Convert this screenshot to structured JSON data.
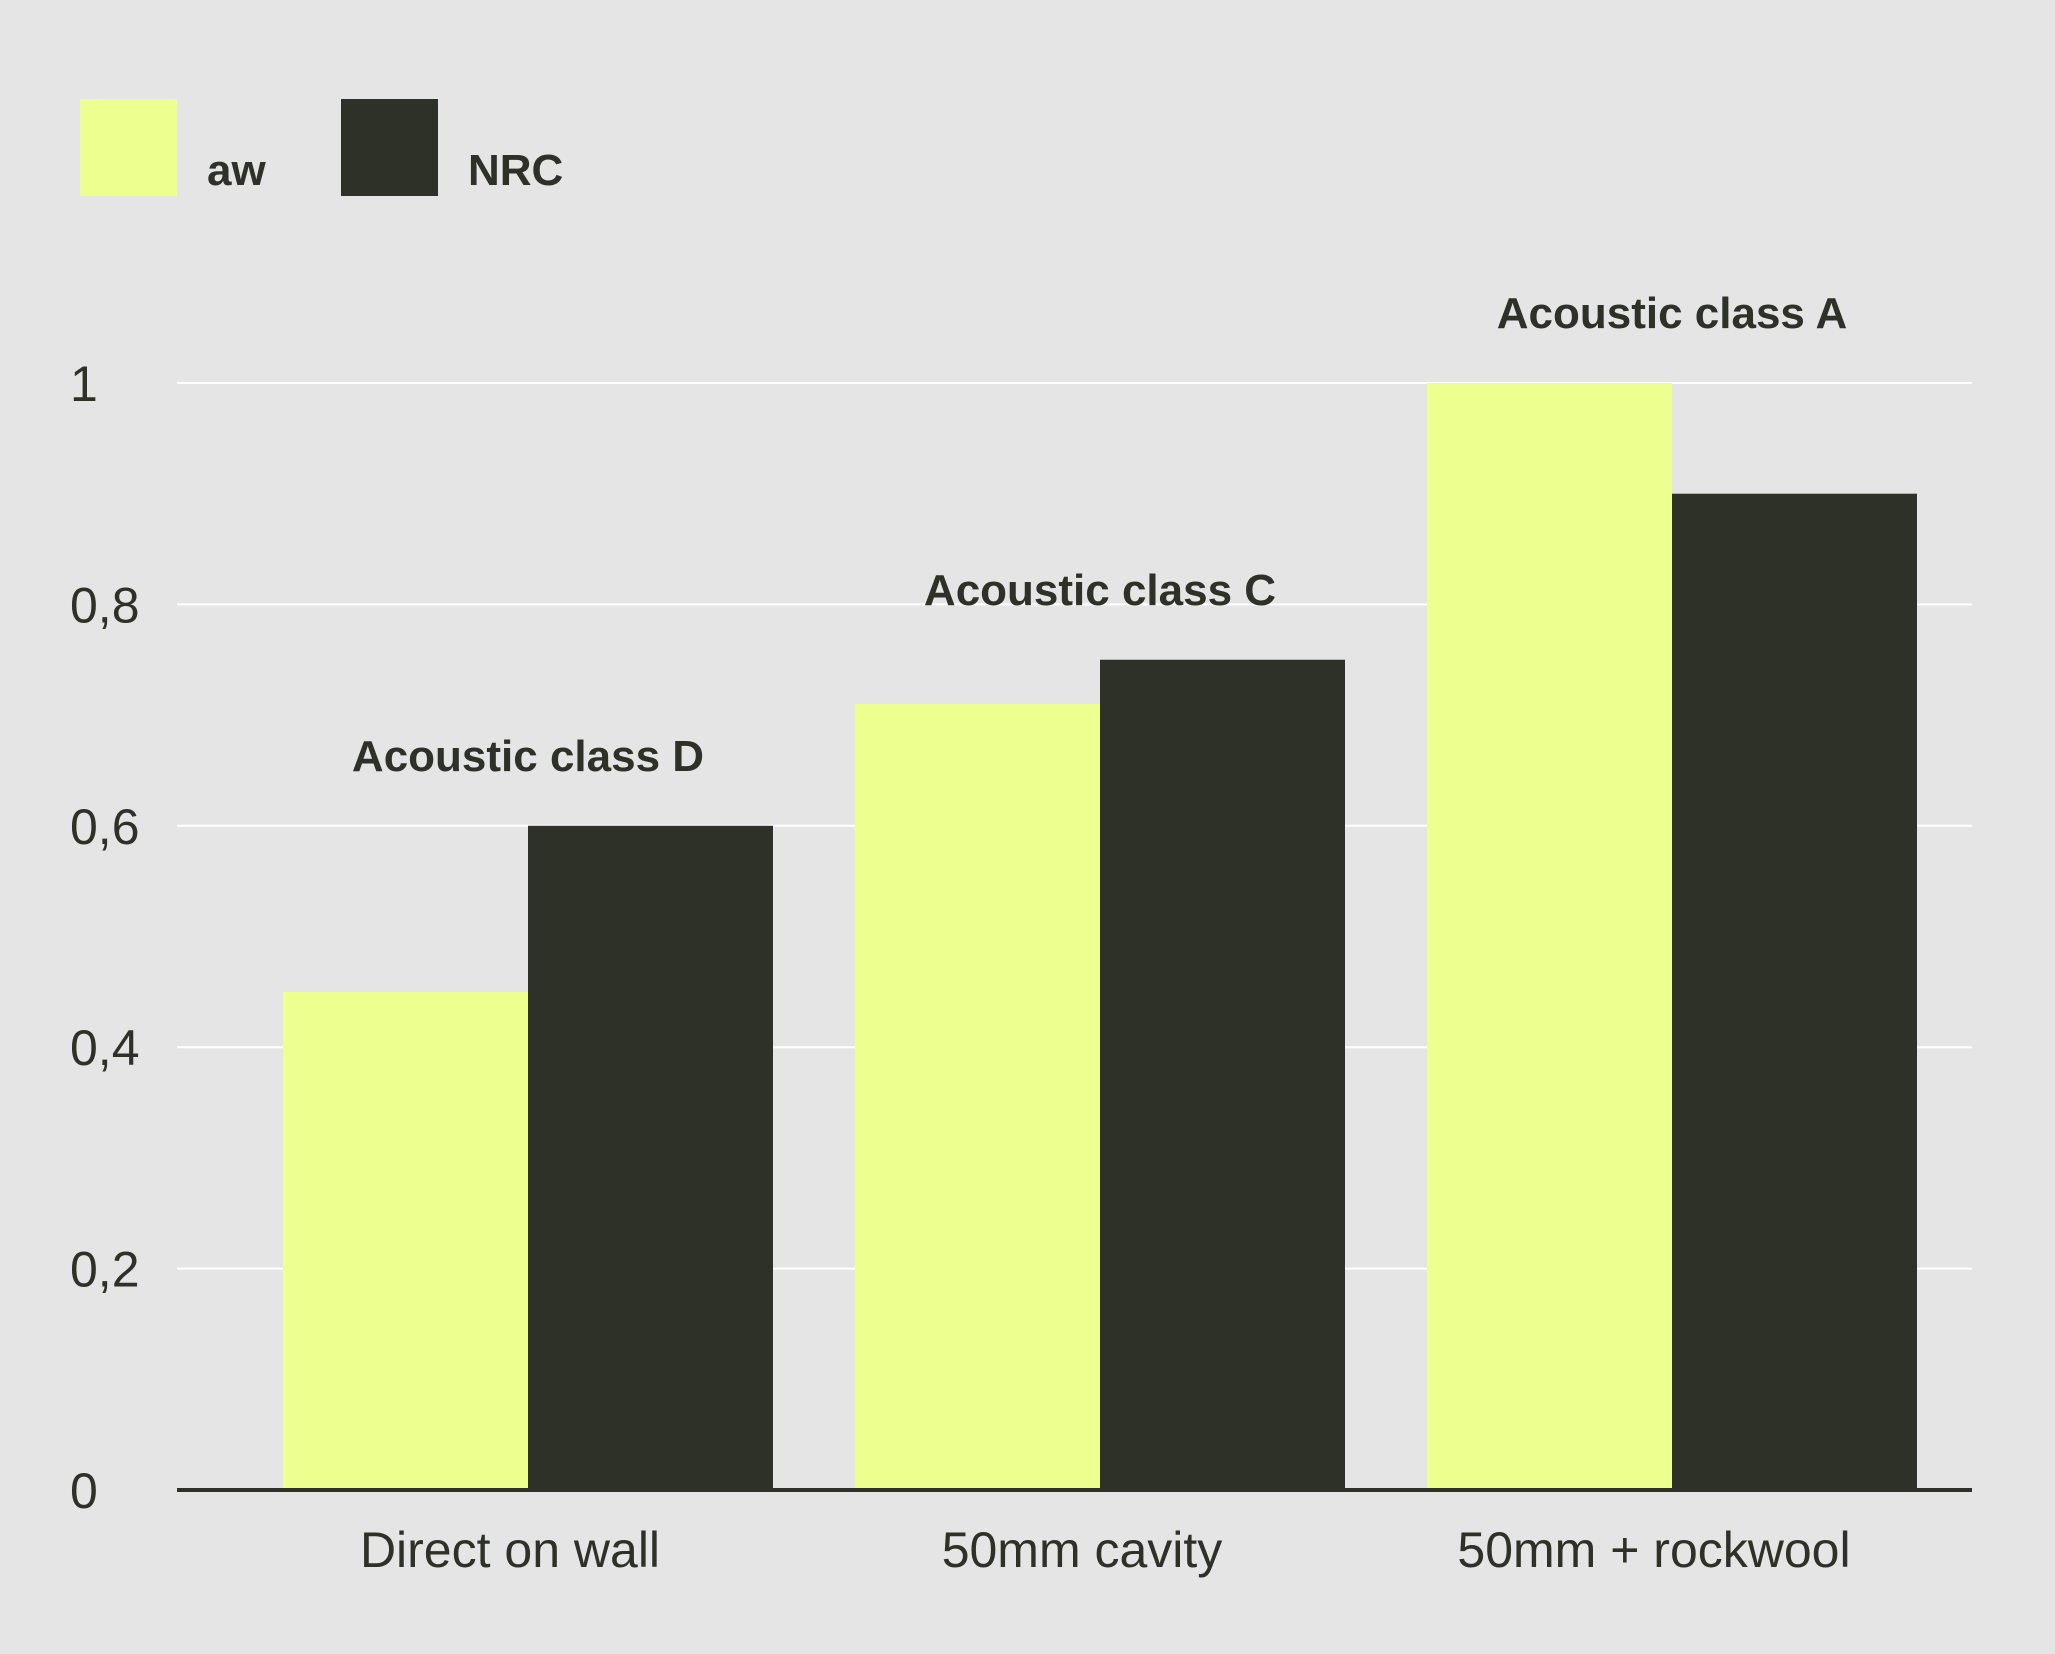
{
  "chart_data": {
    "type": "bar",
    "categories": [
      "Direct on wall",
      "50mm cavity",
      "50mm + rockwool"
    ],
    "series": [
      {
        "name": "aw",
        "values": [
          0.45,
          0.71,
          1.0
        ],
        "color": "#edff8f"
      },
      {
        "name": "NRC",
        "values": [
          0.6,
          0.75,
          0.9
        ],
        "color": "#2e3128"
      }
    ],
    "annotations": [
      "Acoustic class D",
      "Acoustic class C",
      "Acoustic class A"
    ],
    "yticks": [
      "0",
      "0,2",
      "0,4",
      "0,6",
      "0,8",
      "1"
    ],
    "ylim": [
      0,
      1
    ],
    "grid": true,
    "legend": "top-left",
    "colors": {
      "background": "#e5e5e5",
      "gridline": "#ffffff",
      "axis": "#2e3128",
      "text": "#2e3128"
    }
  }
}
